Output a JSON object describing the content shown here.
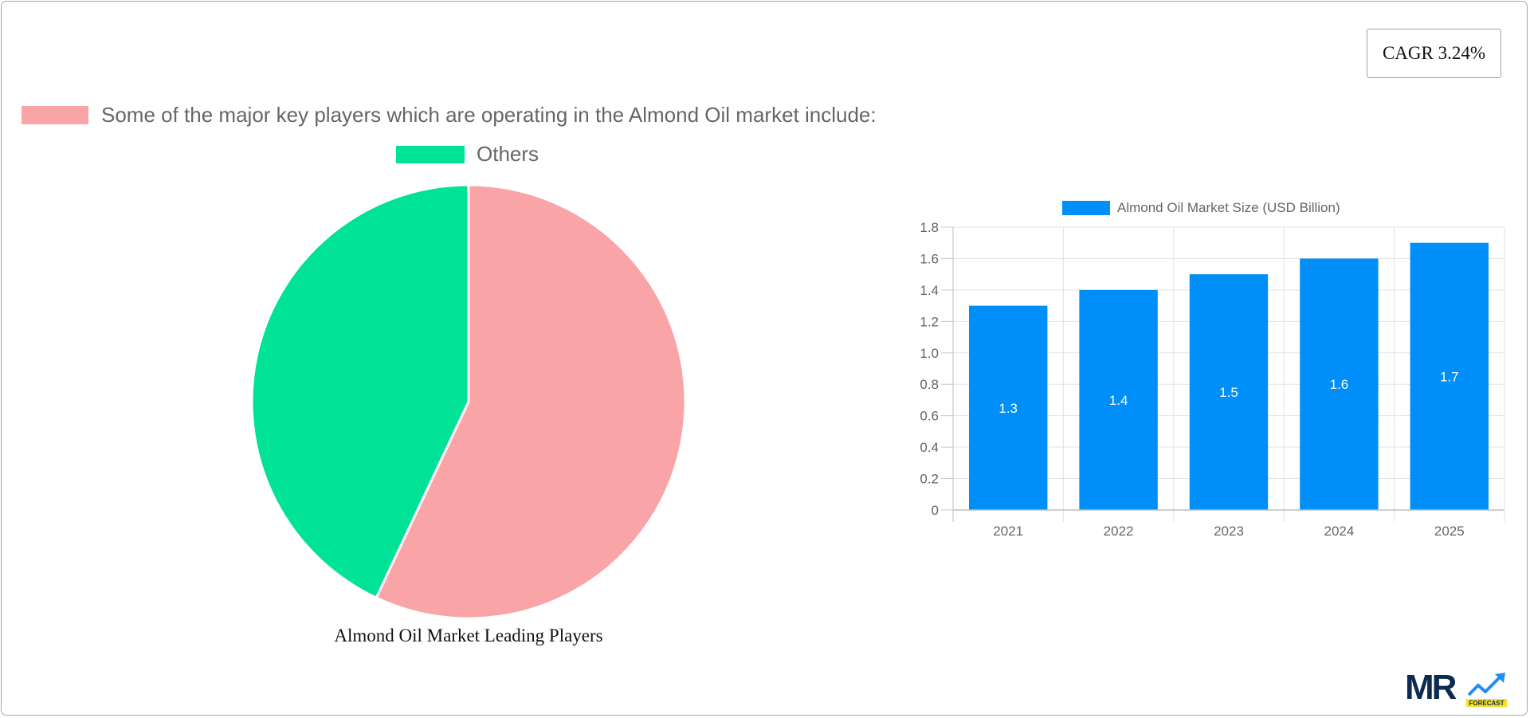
{
  "cagr": {
    "label": "CAGR 3.24%"
  },
  "pie": {
    "legend": [
      {
        "label": "Some of the major key players which are operating in the Almond Oil market include:",
        "color": "#f9a5a7"
      },
      {
        "label": "Others",
        "color": "#00e396"
      }
    ],
    "caption": "Almond Oil Market Leading Players"
  },
  "bar": {
    "legend_label": "Almond Oil Market  Size (USD Billion)",
    "color": "#008ef9"
  },
  "logo": {
    "text": "MR",
    "badge": "FORECAST"
  },
  "chart_data": [
    {
      "type": "pie",
      "title": "Almond Oil Market Leading Players",
      "labels": [
        "Some of the major key players which are operating in the Almond Oil market include:",
        "Others"
      ],
      "values": [
        57,
        43
      ],
      "colors": [
        "#f9a5a7",
        "#00e396"
      ],
      "legend_position": "top"
    },
    {
      "type": "bar",
      "title": "",
      "categories": [
        "2021",
        "2022",
        "2023",
        "2024",
        "2025"
      ],
      "series": [
        {
          "name": "Almond Oil Market  Size (USD Billion)",
          "values": [
            1.3,
            1.4,
            1.5,
            1.6,
            1.7
          ]
        }
      ],
      "xlabel": "",
      "ylabel": "",
      "ylim": [
        0,
        1.8
      ],
      "yticks": [
        "0",
        "0.2",
        "0.4",
        "0.6",
        "0.8",
        "1.0",
        "1.2",
        "1.4",
        "1.6",
        "1.8"
      ],
      "grid": true,
      "data_labels": true,
      "legend_position": "top"
    }
  ]
}
